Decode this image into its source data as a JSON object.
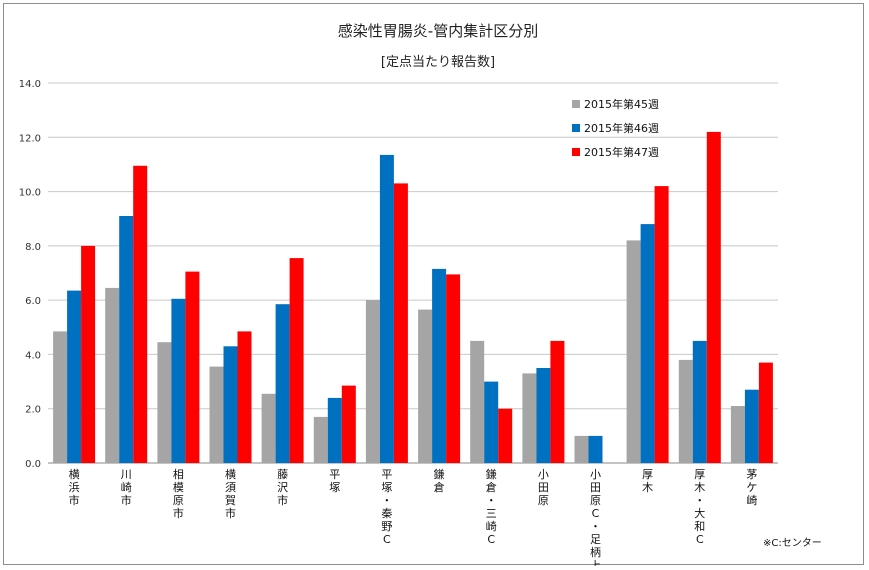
{
  "chart_data": {
    "type": "bar",
    "title": "感染性胃腸炎-管内集計区分別",
    "subtitle": "[定点当たり報告数]",
    "xlabel": "",
    "ylabel": "",
    "ylim": [
      0,
      14
    ],
    "yticks": [
      "0.0",
      "2.0",
      "4.0",
      "6.0",
      "8.0",
      "10.0",
      "12.0",
      "14.0"
    ],
    "grid": true,
    "legend_position": "top-right",
    "categories": [
      [
        "横",
        "浜",
        "市"
      ],
      [
        "川",
        "崎",
        "市"
      ],
      [
        "相",
        "模",
        "原",
        "市"
      ],
      [
        "横",
        "須",
        "賀",
        "市"
      ],
      [
        "藤",
        "沢",
        "市"
      ],
      [
        "平",
        "塚"
      ],
      [
        "平",
        "塚",
        "・",
        "秦",
        "野",
        "C"
      ],
      [
        "鎌",
        "倉"
      ],
      [
        "鎌",
        "倉",
        "・",
        "三",
        "崎",
        "C"
      ],
      [
        "小",
        "田",
        "原"
      ],
      [
        "小",
        "田",
        "原",
        "C",
        "・",
        "足",
        "柄",
        "上"
      ],
      [
        "厚",
        "木"
      ],
      [
        "厚",
        "木",
        "・",
        "大",
        "和",
        "C"
      ],
      [
        "茅",
        "ケ",
        "崎"
      ]
    ],
    "series": [
      {
        "name": "2015年第45週",
        "color": "#a5a5a5",
        "values": [
          4.85,
          6.45,
          4.45,
          3.55,
          2.55,
          1.7,
          6.0,
          5.65,
          4.5,
          3.3,
          1.0,
          8.2,
          3.8,
          2.1
        ]
      },
      {
        "name": "2015年第46週",
        "color": "#0070c0",
        "values": [
          6.35,
          9.1,
          6.05,
          4.3,
          5.85,
          2.4,
          11.35,
          7.15,
          3.0,
          3.5,
          1.0,
          8.8,
          4.5,
          2.7
        ]
      },
      {
        "name": "2015年第47週",
        "color": "#ff0000",
        "values": [
          8.0,
          10.95,
          7.05,
          4.85,
          7.55,
          2.85,
          10.3,
          6.95,
          2.0,
          4.5,
          0,
          10.2,
          12.2,
          3.7
        ]
      }
    ],
    "note": "※C:センター"
  }
}
